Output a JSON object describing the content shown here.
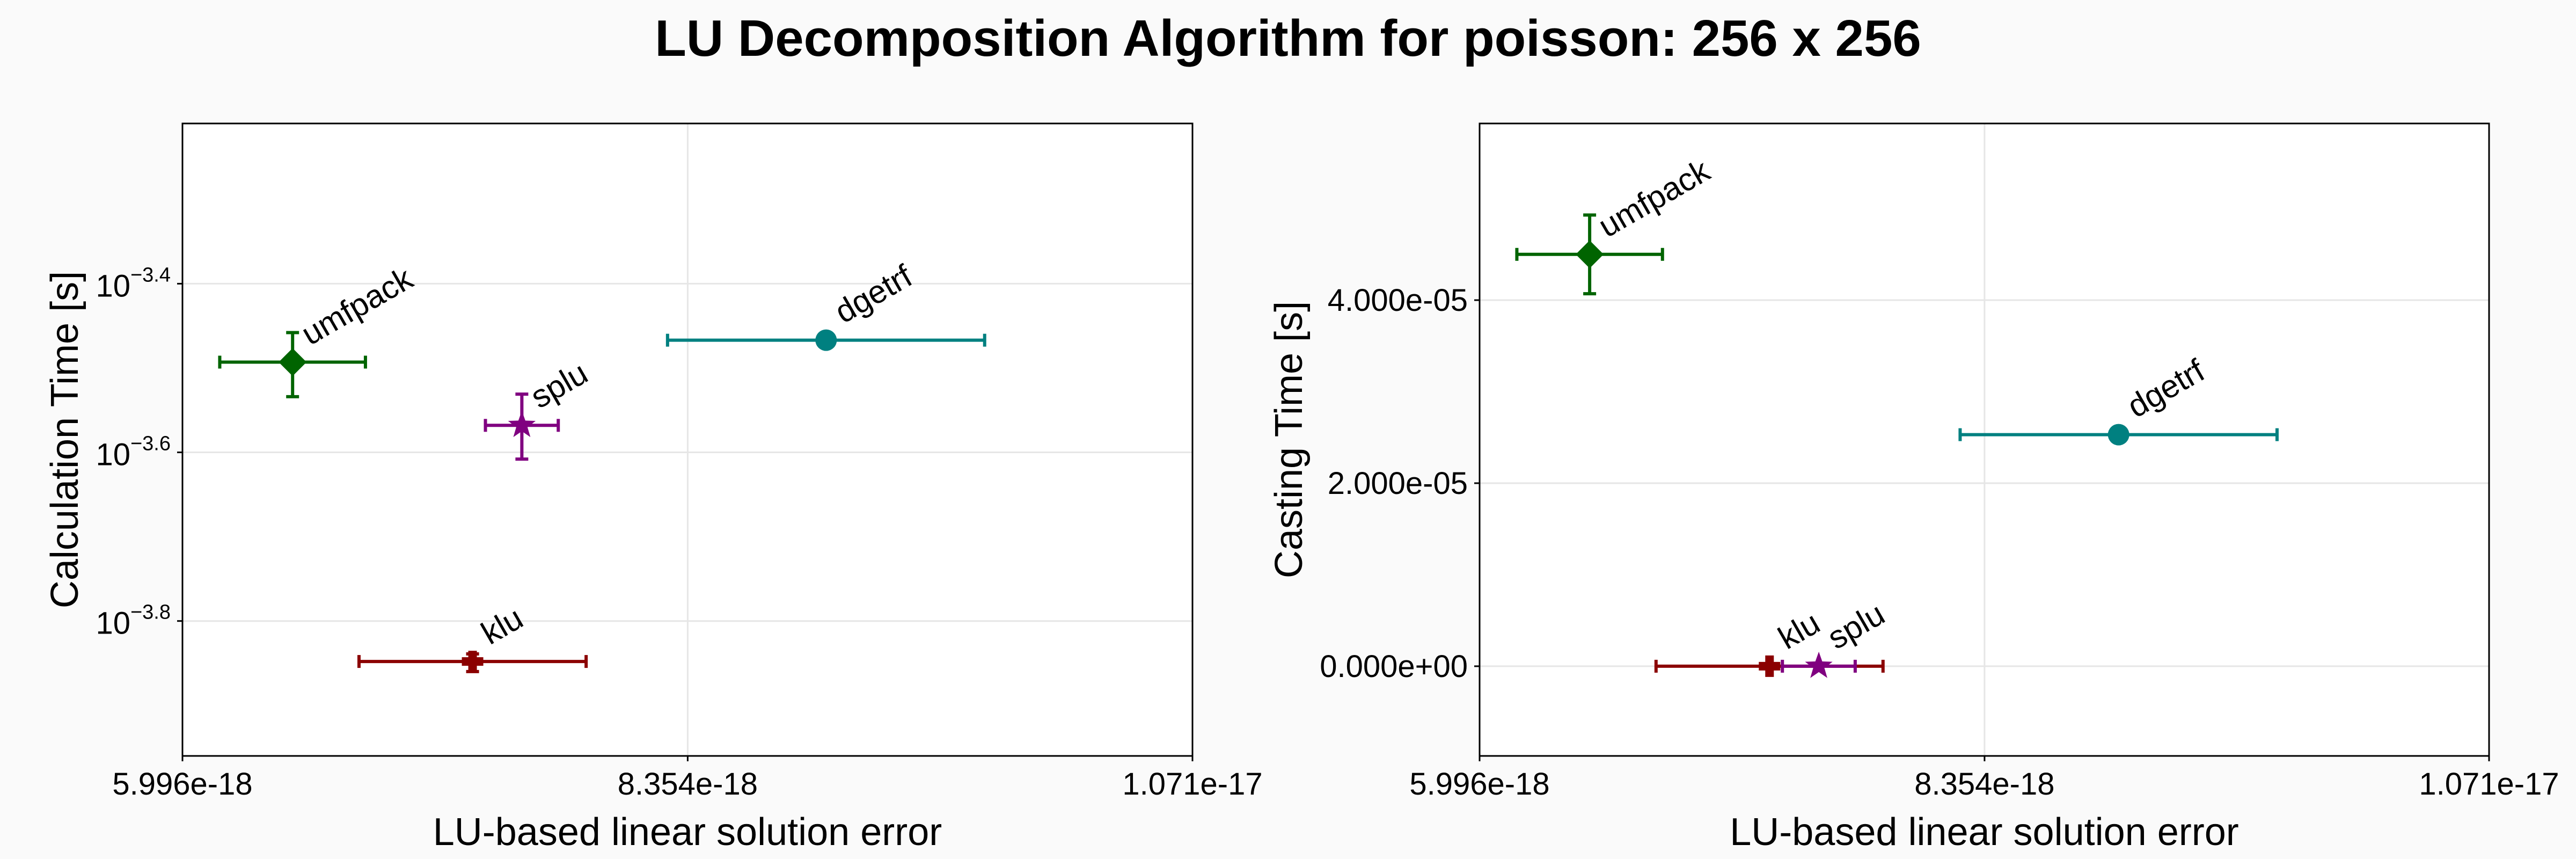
{
  "title": "LU Decomposition Algorithm for poisson: 256 x 256",
  "colors": {
    "umfpack": "#006400",
    "dgetrf": "#008080",
    "splu": "#800080",
    "klu": "#8b0000"
  },
  "chart_data": [
    {
      "type": "scatter",
      "name": "calculation-time",
      "xlabel": "LU-based linear solution error",
      "ylabel": "Calculation Time [s]",
      "yscale": "log10",
      "xlim": [
        5.996e-18,
        1.071e-17
      ],
      "ylim_log10": [
        -3.96,
        -3.21
      ],
      "xticks": [
        {
          "value": 5.996e-18,
          "label": "5.996e-18"
        },
        {
          "value": 8.354e-18,
          "label": "8.354e-18"
        },
        {
          "value": 1.071e-17,
          "label": "1.071e-17"
        }
      ],
      "yticks": [
        {
          "value": -3.4,
          "base": "10",
          "exp": "−3.4"
        },
        {
          "value": -3.6,
          "base": "10",
          "exp": "−3.6"
        },
        {
          "value": -3.8,
          "base": "10",
          "exp": "−3.8"
        }
      ],
      "grid": true,
      "points": [
        {
          "label": "umfpack",
          "marker": "diamond",
          "x": 6.51e-18,
          "xerr": 3.4e-19,
          "y": -3.493,
          "yerr_low": 0.041,
          "yerr_high": 0.035
        },
        {
          "label": "dgetrf",
          "marker": "circle",
          "x": 9e-18,
          "xerr": 7.4e-19,
          "y": -3.467,
          "yerr_low": 0,
          "yerr_high": 0
        },
        {
          "label": "splu",
          "marker": "star",
          "x": 7.58e-18,
          "xerr": 1.7e-19,
          "y": -3.568,
          "yerr_low": 0.04,
          "yerr_high": 0.037
        },
        {
          "label": "klu",
          "marker": "cross",
          "x": 7.35e-18,
          "xerr": 5.3e-19,
          "y": -3.848,
          "yerr_low": 0.012,
          "yerr_high": 0.009
        }
      ]
    },
    {
      "type": "scatter",
      "name": "casting-time",
      "xlabel": "LU-based linear solution error",
      "ylabel": "Casting Time [s]",
      "yscale": "linear",
      "xlim": [
        5.996e-18,
        1.071e-17
      ],
      "ylim": [
        -9.8e-06,
        5.93e-05
      ],
      "xticks": [
        {
          "value": 5.996e-18,
          "label": "5.996e-18"
        },
        {
          "value": 8.354e-18,
          "label": "8.354e-18"
        },
        {
          "value": 1.071e-17,
          "label": "1.071e-17"
        }
      ],
      "yticks": [
        {
          "value": 4e-05,
          "label": "4.000e-05"
        },
        {
          "value": 2e-05,
          "label": "2.000e-05"
        },
        {
          "value": 0,
          "label": "0.000e+00"
        }
      ],
      "grid": true,
      "points": [
        {
          "label": "umfpack",
          "marker": "diamond",
          "x": 6.51e-18,
          "xerr": 3.4e-19,
          "y": 4.5e-05,
          "yerr_low": 4.3e-06,
          "yerr_high": 4.3e-06
        },
        {
          "label": "dgetrf",
          "marker": "circle",
          "x": 8.98e-18,
          "xerr": 7.4e-19,
          "y": 2.53e-05,
          "yerr_low": 0,
          "yerr_high": 0
        },
        {
          "label": "klu",
          "marker": "cross",
          "x": 7.35e-18,
          "xerr": 5.3e-19,
          "y": 0,
          "yerr_low": 0,
          "yerr_high": 0
        },
        {
          "label": "splu",
          "marker": "star",
          "x": 7.58e-18,
          "xerr": 1.7e-19,
          "y": 0,
          "yerr_low": 0,
          "yerr_high": 0
        }
      ]
    }
  ]
}
